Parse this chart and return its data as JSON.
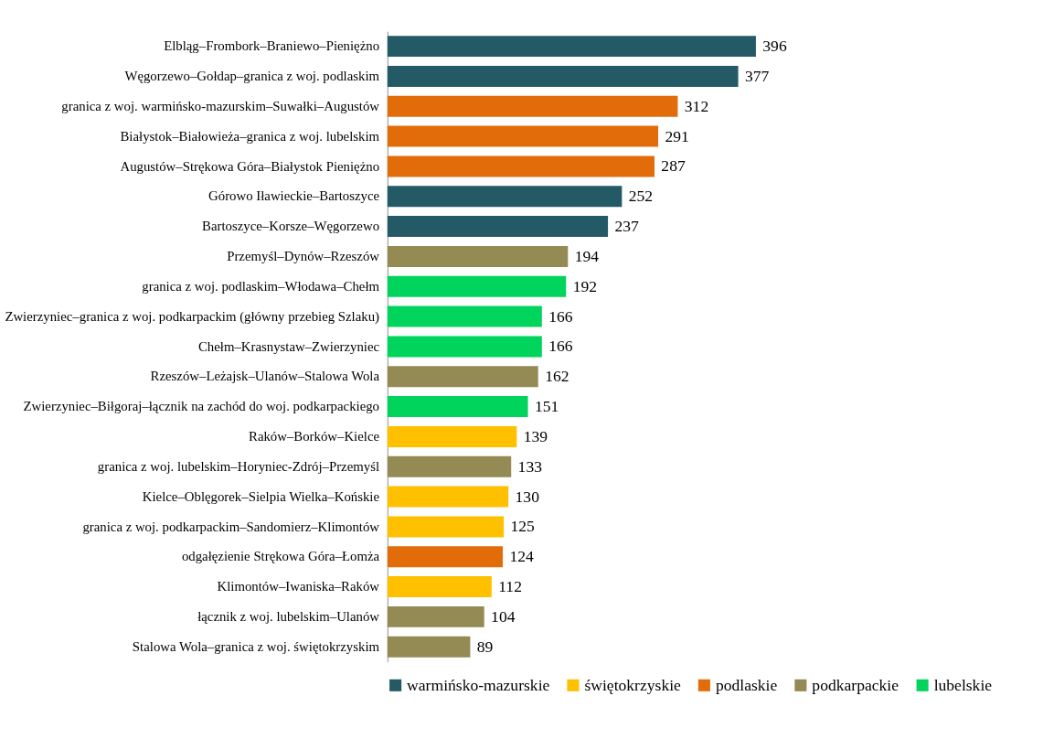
{
  "chart_data": {
    "type": "bar",
    "orientation": "horizontal",
    "data_labels": true,
    "legend": "bottom",
    "grid": false,
    "categories": [
      "Elbląg–Frombork–Braniewo–Pieniężno",
      "Węgorzewo–Gołdap–granica z woj. podlaskim",
      "granica z woj. warmińsko-mazurskim–Suwałki–Augustów",
      "Białystok–Białowieża–granica z woj. lubelskim",
      "Augustów–Strękowa Góra–Białystok Pieniężno",
      "Górowo Iławieckie–Bartoszyce",
      "Bartoszyce–Korsze–Węgorzewo",
      "Przemyśl–Dynów–Rzeszów",
      "granica z woj. podlaskim–Włodawa–Chełm",
      "Zwierzyniec–granica z woj. podkarpackim (główny przebieg Szlaku)",
      "Chełm–Krasnystaw–Zwierzyniec",
      "Rzeszów–Leżajsk–Ulanów–Stalowa Wola",
      "Zwierzyniec–Biłgoraj–łącznik na zachód do woj. podkarpackiego",
      "Raków–Borków–Kielce",
      "granica z woj. lubelskim–Horyniec-Zdrój–Przemyśl",
      "Kielce–Oblęgorek–Sielpia Wielka–Końskie",
      "granica z woj. podkarpackim–Sandomierz–Klimontów",
      "odgałęzienie Strękowa Góra–Łomża",
      "Klimontów–Iwaniska–Raków",
      "łącznik z woj. lubelskim–Ulanów",
      "Stalowa Wola–granica z woj. świętokrzyskim"
    ],
    "series": [
      {
        "name": "warmińsko-mazurskie",
        "color": "#235a66",
        "values": [
          396,
          377,
          null,
          null,
          null,
          252,
          237,
          null,
          null,
          null,
          null,
          null,
          null,
          null,
          null,
          null,
          null,
          null,
          null,
          null,
          null
        ]
      },
      {
        "name": "świętokrzyskie",
        "color": "#ffc000",
        "values": [
          null,
          null,
          null,
          null,
          null,
          null,
          null,
          null,
          null,
          null,
          null,
          null,
          null,
          139,
          null,
          130,
          125,
          null,
          112,
          null,
          null
        ]
      },
      {
        "name": "podlaskie",
        "color": "#e36c0a",
        "values": [
          null,
          null,
          312,
          291,
          287,
          null,
          null,
          null,
          null,
          null,
          null,
          null,
          null,
          null,
          null,
          null,
          null,
          124,
          null,
          null,
          null
        ]
      },
      {
        "name": "podkarpackie",
        "color": "#948a54",
        "values": [
          null,
          null,
          null,
          null,
          null,
          null,
          null,
          194,
          null,
          null,
          null,
          162,
          null,
          null,
          133,
          null,
          null,
          null,
          null,
          104,
          89
        ]
      },
      {
        "name": "lubelskie",
        "color": "#00d45c",
        "values": [
          null,
          null,
          null,
          null,
          null,
          null,
          null,
          null,
          192,
          166,
          166,
          null,
          151,
          null,
          null,
          null,
          null,
          null,
          null,
          null,
          null
        ]
      }
    ]
  }
}
